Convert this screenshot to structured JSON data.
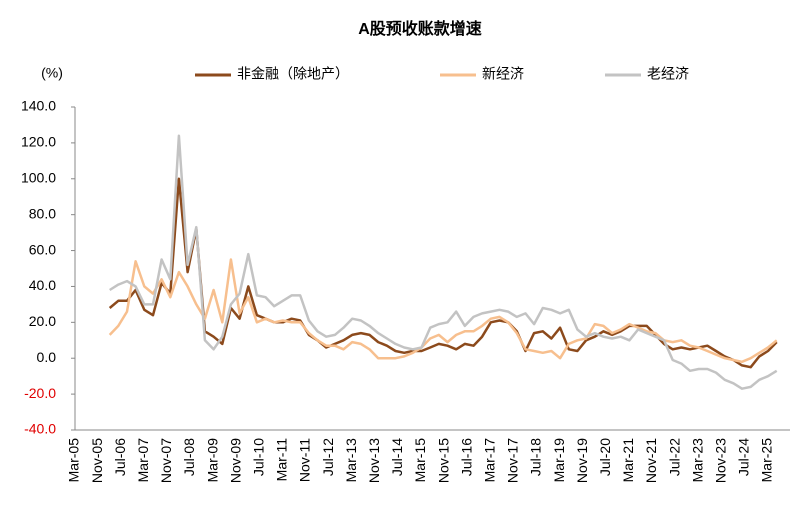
{
  "chart_data": {
    "type": "line",
    "title": "A股预收账款增速",
    "y_unit_label": "(%)",
    "categories": [
      "Mar-05",
      "Nov-05",
      "Jul-06",
      "Mar-07",
      "Nov-07",
      "Jul-08",
      "Mar-09",
      "Nov-09",
      "Jul-10",
      "Mar-11",
      "Nov-11",
      "Jul-12",
      "Mar-13",
      "Nov-13",
      "Jul-14",
      "Mar-15",
      "Nov-15",
      "Jul-16",
      "Mar-17",
      "Nov-17",
      "Jul-18",
      "Mar-19",
      "Nov-19",
      "Jul-20",
      "Mar-21",
      "Nov-21",
      "Jul-22",
      "Mar-23",
      "Nov-23",
      "Jul-24",
      "Mar-25"
    ],
    "x": [
      "Mar-06",
      "Jun-06",
      "Sep-06",
      "Dec-06",
      "Mar-07",
      "Jun-07",
      "Sep-07",
      "Dec-07",
      "Mar-08",
      "Jun-08",
      "Sep-08",
      "Dec-08",
      "Mar-09",
      "Jun-09",
      "Sep-09",
      "Dec-09",
      "Mar-10",
      "Jun-10",
      "Sep-10",
      "Dec-10",
      "Mar-11",
      "Jun-11",
      "Sep-11",
      "Dec-11",
      "Mar-12",
      "Jun-12",
      "Sep-12",
      "Dec-12",
      "Mar-13",
      "Jun-13",
      "Sep-13",
      "Dec-13",
      "Mar-14",
      "Jun-14",
      "Sep-14",
      "Dec-14",
      "Mar-15",
      "Jun-15",
      "Sep-15",
      "Dec-15",
      "Mar-16",
      "Jun-16",
      "Sep-16",
      "Dec-16",
      "Mar-17",
      "Jun-17",
      "Sep-17",
      "Dec-17",
      "Mar-18",
      "Jun-18",
      "Sep-18",
      "Dec-18",
      "Mar-19",
      "Jun-19",
      "Sep-19",
      "Dec-19",
      "Mar-20",
      "Jun-20",
      "Sep-20",
      "Dec-20",
      "Mar-21",
      "Jun-21",
      "Sep-21",
      "Dec-21",
      "Mar-22",
      "Jun-22",
      "Sep-22",
      "Dec-22",
      "Mar-23",
      "Jun-23",
      "Sep-23",
      "Dec-23",
      "Mar-24",
      "Jun-24",
      "Sep-24",
      "Dec-24",
      "Mar-25",
      "Jun-25"
    ],
    "series": [
      {
        "name": "非金融（除地产）",
        "color": "#8c4a1c",
        "values": [
          28,
          32,
          32,
          38,
          27,
          24,
          42,
          36,
          100,
          48,
          72,
          15,
          12,
          8,
          28,
          22,
          40,
          24,
          22,
          20,
          20,
          22,
          21,
          13,
          10,
          6,
          8,
          10,
          13,
          14,
          13,
          9,
          7,
          4,
          3,
          4,
          4,
          6,
          8,
          7,
          5,
          8,
          7,
          12,
          20,
          21,
          20,
          15,
          4,
          14,
          15,
          11,
          17,
          5,
          4,
          10,
          12,
          15,
          13,
          15,
          18,
          18,
          18,
          13,
          8,
          5,
          6,
          5,
          6,
          7,
          4,
          1,
          -1,
          -4,
          -5,
          1,
          4,
          9
        ]
      },
      {
        "name": "新经济",
        "color": "#f7bf8e",
        "values": [
          13,
          18,
          26,
          54,
          40,
          36,
          44,
          34,
          48,
          40,
          30,
          22,
          38,
          20,
          55,
          25,
          34,
          20,
          22,
          20,
          21,
          20,
          20,
          14,
          10,
          7,
          7,
          5,
          9,
          8,
          5,
          0,
          0,
          0,
          1,
          3,
          6,
          11,
          13,
          9,
          13,
          15,
          15,
          18,
          22,
          23,
          20,
          14,
          5,
          4,
          3,
          4,
          0,
          8,
          10,
          11,
          19,
          18,
          14,
          16,
          19,
          17,
          15,
          14,
          10,
          9,
          10,
          7,
          6,
          4,
          2,
          0,
          -1,
          -2,
          0,
          3,
          6,
          10
        ]
      },
      {
        "name": "老经济",
        "color": "#c3c3c3",
        "values": [
          38,
          41,
          43,
          40,
          30,
          30,
          55,
          44,
          124,
          52,
          73,
          10,
          5,
          12,
          30,
          36,
          58,
          35,
          34,
          29,
          32,
          35,
          35,
          21,
          15,
          12,
          13,
          17,
          22,
          21,
          18,
          14,
          11,
          8,
          6,
          5,
          6,
          17,
          19,
          20,
          26,
          18,
          23,
          25,
          26,
          27,
          26,
          23,
          25,
          19,
          28,
          27,
          25,
          27,
          16,
          12,
          14,
          12,
          11,
          12,
          10,
          16,
          14,
          12,
          10,
          -1,
          -3,
          -7,
          -6,
          -6,
          -8,
          -12,
          -14,
          -17,
          -16,
          -12,
          -10,
          -7
        ]
      }
    ],
    "ylim": [
      -40,
      140
    ],
    "yticks": [
      {
        "value": -40,
        "label": "-40.0"
      },
      {
        "value": -20,
        "label": "-20.0"
      },
      {
        "value": 0,
        "label": "0.0"
      },
      {
        "value": 20,
        "label": "20.0"
      },
      {
        "value": 40,
        "label": "40.0"
      },
      {
        "value": 60,
        "label": "60.0"
      },
      {
        "value": 80,
        "label": "80.0"
      },
      {
        "value": 100,
        "label": "100.0"
      },
      {
        "value": 120,
        "label": "120.0"
      },
      {
        "value": 140,
        "label": "140.0"
      }
    ]
  }
}
